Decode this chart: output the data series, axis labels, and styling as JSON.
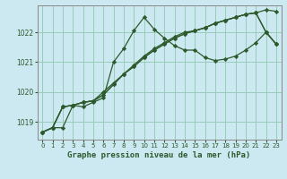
{
  "title": "Graphe pression niveau de la mer (hPa)",
  "background_color": "#cce8f0",
  "grid_color": "#99ccbb",
  "line_color": "#2d5a2d",
  "xlim": [
    -0.5,
    23.5
  ],
  "ylim": [
    1018.4,
    1022.9
  ],
  "yticks": [
    1019,
    1020,
    1021,
    1022
  ],
  "xticks": [
    0,
    1,
    2,
    3,
    4,
    5,
    6,
    7,
    8,
    9,
    10,
    11,
    12,
    13,
    14,
    15,
    16,
    17,
    18,
    19,
    20,
    21,
    22,
    23
  ],
  "series": [
    [
      1018.65,
      1018.8,
      1018.8,
      1019.55,
      1019.5,
      1019.65,
      1019.8,
      1021.0,
      1021.45,
      1022.05,
      1022.5,
      1022.1,
      1021.8,
      1021.55,
      1021.4,
      1021.4,
      1021.15,
      1021.05,
      1021.1,
      1021.2,
      1021.4,
      1021.65,
      1022.0,
      1021.6
    ],
    [
      1018.65,
      1018.8,
      1019.5,
      1019.55,
      1019.65,
      1019.7,
      1019.9,
      1020.25,
      1020.6,
      1020.85,
      1021.15,
      1021.4,
      1021.6,
      1021.8,
      1021.95,
      1022.05,
      1022.15,
      1022.3,
      1022.4,
      1022.5,
      1022.6,
      1022.65,
      1022.75,
      1022.7
    ],
    [
      1018.65,
      1018.8,
      1019.5,
      1019.55,
      1019.65,
      1019.7,
      1019.9,
      1020.25,
      1020.6,
      1020.85,
      1021.15,
      1021.4,
      1021.6,
      1021.8,
      1021.95,
      1022.05,
      1022.15,
      1022.3,
      1022.4,
      1022.5,
      1022.6,
      1022.65,
      1022.0,
      1021.6
    ],
    [
      1018.65,
      1018.8,
      1019.5,
      1019.55,
      1019.65,
      1019.7,
      1020.0,
      1020.3,
      1020.6,
      1020.9,
      1021.2,
      1021.45,
      1021.65,
      1021.85,
      1022.0,
      1022.05,
      1022.15,
      1022.3,
      1022.4,
      1022.5,
      1022.6,
      1022.65,
      1022.0,
      1021.6
    ]
  ],
  "marker": "D",
  "markersize": 2.2,
  "linewidth": 0.9,
  "xlabel_fontsize": 6.5,
  "tick_fontsize": 5.0,
  "ylabel_fontsize": 5.5
}
